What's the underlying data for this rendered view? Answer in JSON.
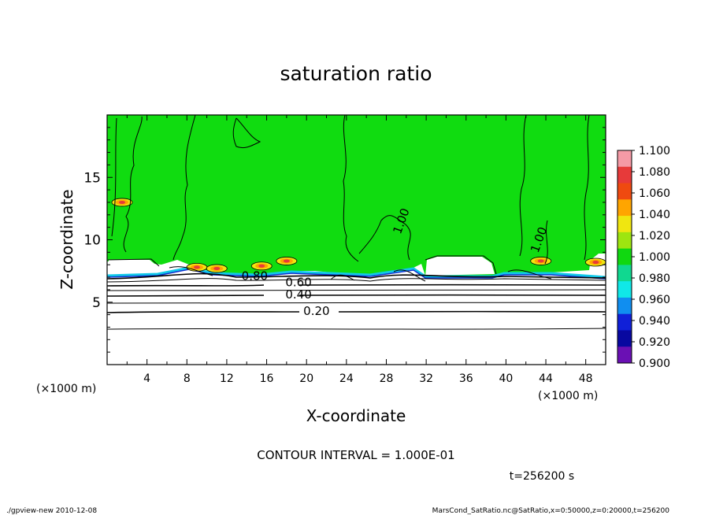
{
  "chart_data": {
    "type": "heatmap",
    "title": "saturation ratio",
    "xlabel": "X-coordinate",
    "ylabel": "Z-coordinate",
    "x_unit": "(×1000 m)",
    "y_unit": "(×1000 m)",
    "xlim": [
      0,
      50
    ],
    "ylim": [
      0,
      20
    ],
    "x_ticks": [
      "4",
      "8",
      "12",
      "16",
      "20",
      "24",
      "28",
      "32",
      "36",
      "40",
      "44",
      "48"
    ],
    "y_ticks": [
      "5",
      "10",
      "15"
    ],
    "contour_interval_text": "CONTOUR INTERVAL = 1.000E-01",
    "time_text": "t=256200 s",
    "contour_labels": [
      {
        "text": "0.20",
        "x": 21.0,
        "z": 4.3
      },
      {
        "text": "0.40",
        "x": 19.2,
        "z": 5.6
      },
      {
        "text": "0.60",
        "x": 19.2,
        "z": 6.6
      },
      {
        "text": "0.80",
        "x": 14.8,
        "z": 7.1
      },
      {
        "text": "1.00",
        "x": 29.5,
        "z": 11.5
      },
      {
        "text": "1.00",
        "x": 43.3,
        "z": 10.0
      }
    ],
    "colorbar": {
      "labels": [
        "1.100",
        "1.080",
        "1.060",
        "1.040",
        "1.020",
        "1.000",
        "0.980",
        "0.960",
        "0.940",
        "0.920",
        "0.900"
      ],
      "colors": [
        "#f59aa6",
        "#e73a3a",
        "#ef4a10",
        "#ffa500",
        "#f0e610",
        "#9ee510",
        "#10d810",
        "#10d890",
        "#10e8e8",
        "#108ef0",
        "#1020d8",
        "#0808a0",
        "#6a10b4"
      ]
    },
    "field_color": "#10dc10",
    "supersaturated_patches": [
      {
        "x": 1.5,
        "z": 13.0
      },
      {
        "x": 9.0,
        "z": 7.8
      },
      {
        "x": 11.0,
        "z": 7.7
      },
      {
        "x": 15.5,
        "z": 7.9
      },
      {
        "x": 18.0,
        "z": 8.3
      },
      {
        "x": 43.5,
        "z": 8.3
      },
      {
        "x": 49.0,
        "z": 8.2
      }
    ]
  },
  "footer": {
    "left": "./gpview-new   2010-12-08",
    "right": "MarsCond_SatRatio.nc@SatRatio,x=0:50000,z=0:20000,t=256200"
  }
}
